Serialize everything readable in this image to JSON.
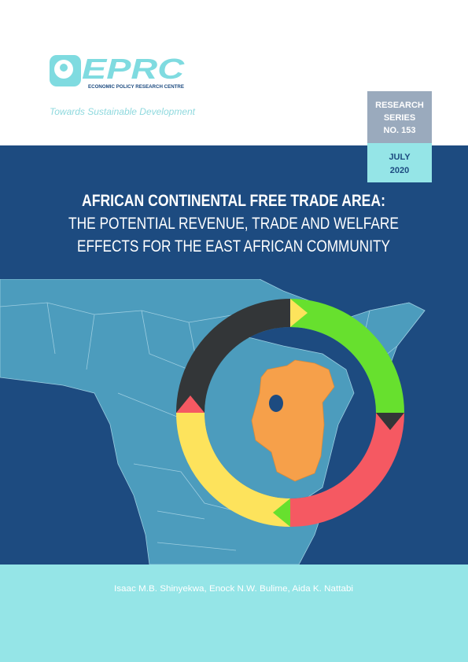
{
  "header": {
    "logo": "EPRC",
    "organization": "ECONOMIC POLICY RESEARCH CENTRE",
    "tagline": "Towards Sustainable Development"
  },
  "badge": {
    "series": [
      "RESEARCH",
      "SERIES",
      "NO. 153"
    ],
    "date": [
      "JULY",
      "2020"
    ]
  },
  "title": {
    "lines": [
      "AFRICAN CONTINENTAL FREE TRADE AREA:",
      "THE POTENTIAL REVENUE, TRADE AND WELFARE",
      "EFFECTS FOR THE EAST AFRICAN COMMUNITY"
    ]
  },
  "authors": "Isaac M.B. Shinyekwa, Enock N.W. Bulime, Aida K. Nattabi"
}
